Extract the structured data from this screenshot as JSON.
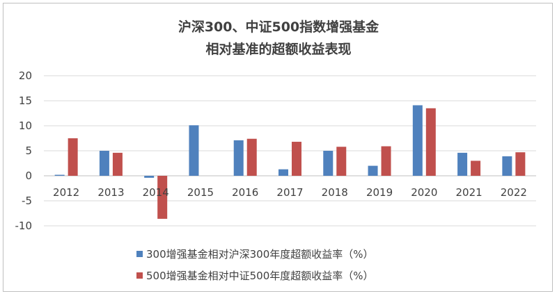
{
  "chart_data": {
    "type": "bar",
    "title_line1": "沪深300、中证500指数增强基金",
    "title_line2": "相对基准的超额收益表现",
    "categories": [
      "2012",
      "2013",
      "2014",
      "2015",
      "2016",
      "2017",
      "2018",
      "2019",
      "2020",
      "2021",
      "2022"
    ],
    "series": [
      {
        "name": "300增强基金相对沪深300年度超额收益率（%）",
        "color": "#4f81bd",
        "values": [
          0.2,
          5.0,
          -0.4,
          10.1,
          7.1,
          1.3,
          5.0,
          2.0,
          14.1,
          4.6,
          3.9
        ]
      },
      {
        "name": "500增强基金相对中证500年度超额收益率（%）",
        "color": "#c0504d",
        "values": [
          7.5,
          4.6,
          -8.6,
          null,
          7.4,
          6.8,
          5.8,
          5.9,
          13.5,
          3.0,
          4.7
        ]
      }
    ],
    "y_ticks": [
      "20",
      "15",
      "10",
      "5",
      "0",
      "-5",
      "-10"
    ],
    "ylim": [
      -10,
      20
    ],
    "grid": true,
    "legend_position": "bottom"
  }
}
